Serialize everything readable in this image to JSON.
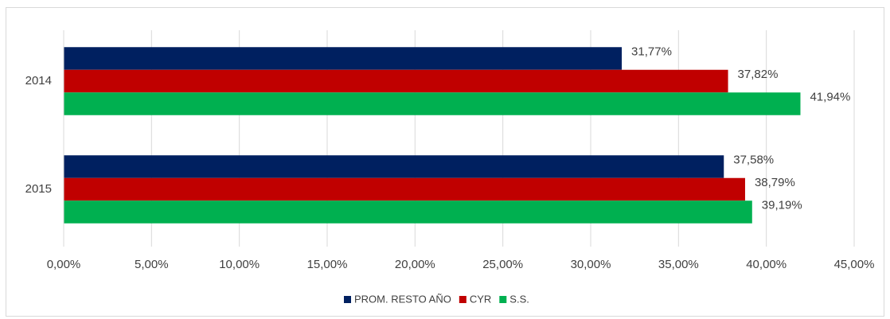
{
  "chart_data": {
    "type": "hbar",
    "categories": [
      "2014",
      "2015"
    ],
    "series": [
      {
        "name": "PROM. RESTO AÑO",
        "color": "#002060",
        "values": [
          31.77,
          37.58
        ],
        "value_labels": [
          "31,77%",
          "37,58%"
        ]
      },
      {
        "name": "CYR",
        "color": "#c00000",
        "values": [
          37.82,
          38.79
        ],
        "value_labels": [
          "37,82%",
          "38,79%"
        ]
      },
      {
        "name": "S.S.",
        "color": "#00b050",
        "values": [
          41.94,
          39.19
        ],
        "value_labels": [
          "41,94%",
          "39,19%"
        ]
      }
    ],
    "xlim": [
      0,
      45
    ],
    "xticks": [
      {
        "value": 0,
        "label": "0,00%"
      },
      {
        "value": 5,
        "label": "5,00%"
      },
      {
        "value": 10,
        "label": "10,00%"
      },
      {
        "value": 15,
        "label": "15,00%"
      },
      {
        "value": 20,
        "label": "20,00%"
      },
      {
        "value": 25,
        "label": "25,00%"
      },
      {
        "value": 30,
        "label": "30,00%"
      },
      {
        "value": 35,
        "label": "35,00%"
      },
      {
        "value": 40,
        "label": "40,00%"
      },
      {
        "value": 45,
        "label": "45,00%"
      }
    ],
    "grid": true,
    "legend": "bottom"
  }
}
